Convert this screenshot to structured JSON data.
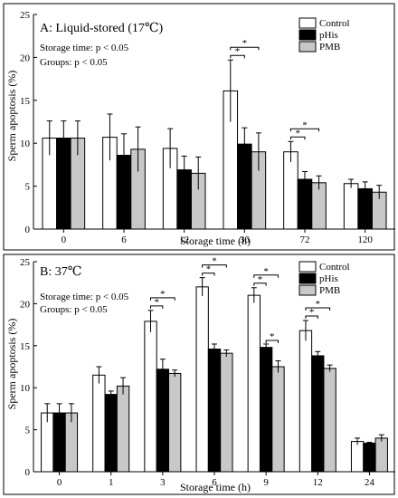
{
  "chart_data": [
    {
      "type": "bar",
      "title": "A: Liquid-stored (17℃)",
      "notes": [
        "Storage time: p < 0.05",
        "Groups: p < 0.05"
      ],
      "xlabel": "Storage time (h)",
      "ylabel": "Sperm apoptosis (%)",
      "ylim": [
        0,
        25
      ],
      "yticks": [
        0,
        5,
        10,
        15,
        20,
        25
      ],
      "categories": [
        "0",
        "6",
        "12",
        "36",
        "72",
        "120"
      ],
      "legend_position": "top-right",
      "series": [
        {
          "name": "Control",
          "color": "#ffffff",
          "values": [
            10.6,
            10.7,
            9.4,
            16.1,
            9.0,
            5.3
          ],
          "errors": [
            2.0,
            2.7,
            2.3,
            3.6,
            1.2,
            0.5
          ]
        },
        {
          "name": "pHis",
          "color": "#000000",
          "values": [
            10.6,
            8.6,
            6.9,
            9.9,
            5.8,
            4.7
          ],
          "errors": [
            2.0,
            2.5,
            1.6,
            1.9,
            0.9,
            0.8
          ]
        },
        {
          "name": "PMB",
          "color": "#c8c8c8",
          "values": [
            10.6,
            9.3,
            6.5,
            9.0,
            5.4,
            4.3
          ],
          "errors": [
            2.0,
            2.6,
            1.9,
            2.2,
            0.8,
            0.8
          ]
        }
      ],
      "significance": [
        {
          "category": "36",
          "pairs": [
            [
              "Control",
              "pHis"
            ],
            [
              "Control",
              "PMB"
            ]
          ],
          "label": "*"
        },
        {
          "category": "72",
          "pairs": [
            [
              "Control",
              "pHis"
            ],
            [
              "Control",
              "PMB"
            ]
          ],
          "label": "*"
        }
      ]
    },
    {
      "type": "bar",
      "title": "B: 37℃",
      "notes": [
        "Storage time: p < 0.05",
        "Groups: p < 0.05"
      ],
      "xlabel": "Storage time (h)",
      "ylabel": "Sperm apoptosis (%)",
      "ylim": [
        0,
        25
      ],
      "yticks": [
        0,
        5,
        10,
        15,
        20,
        25
      ],
      "categories": [
        "0",
        "1",
        "3",
        "6",
        "9",
        "12",
        "24"
      ],
      "legend_position": "top-right",
      "series": [
        {
          "name": "Control",
          "color": "#ffffff",
          "values": [
            7.0,
            11.5,
            17.9,
            22.0,
            21.0,
            16.8,
            3.6
          ],
          "errors": [
            1.1,
            1.0,
            1.3,
            1.1,
            0.9,
            1.2,
            0.4
          ]
        },
        {
          "name": "pHis",
          "color": "#000000",
          "values": [
            7.0,
            9.2,
            12.2,
            14.6,
            14.8,
            13.8,
            3.4
          ],
          "errors": [
            1.1,
            0.4,
            1.2,
            0.6,
            0.4,
            0.5,
            0.1
          ]
        },
        {
          "name": "PMB",
          "color": "#c8c8c8",
          "values": [
            7.0,
            10.2,
            11.7,
            14.1,
            12.5,
            12.3,
            4.0
          ],
          "errors": [
            1.1,
            1.0,
            0.4,
            0.4,
            0.7,
            0.4,
            0.4
          ]
        }
      ],
      "significance": [
        {
          "category": "3",
          "pairs": [
            [
              "Control",
              "pHis"
            ],
            [
              "Control",
              "PMB"
            ]
          ],
          "label": "*"
        },
        {
          "category": "6",
          "pairs": [
            [
              "Control",
              "pHis"
            ],
            [
              "Control",
              "PMB"
            ]
          ],
          "label": "*"
        },
        {
          "category": "9",
          "pairs": [
            [
              "Control",
              "pHis"
            ],
            [
              "Control",
              "PMB"
            ],
            [
              "pHis",
              "PMB"
            ]
          ],
          "label": "*"
        },
        {
          "category": "12",
          "pairs": [
            [
              "Control",
              "pHis"
            ],
            [
              "Control",
              "PMB"
            ]
          ],
          "label": "*"
        }
      ]
    }
  ]
}
